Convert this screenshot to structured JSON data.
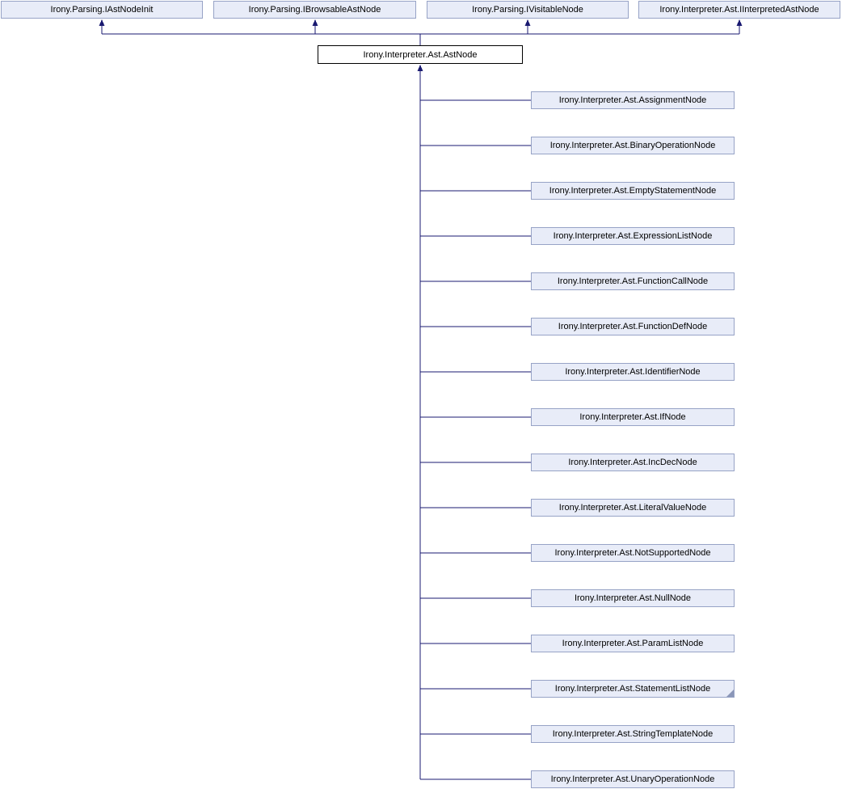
{
  "diagram": {
    "kind": "class-inheritance-graph",
    "colors": {
      "background": "#ffffff",
      "node_fill": "#e8ecf8",
      "node_border": "#97a3c6",
      "main_node_fill": "#ffffff",
      "main_node_border": "#000000",
      "edge": "#191970",
      "text": "#000000"
    },
    "interfaces": [
      {
        "label": "Irony.Parsing.IAstNodeInit"
      },
      {
        "label": "Irony.Parsing.IBrowsableAstNode"
      },
      {
        "label": "Irony.Parsing.IVisitableNode"
      },
      {
        "label": "Irony.Interpreter.Ast.IInterpretedAstNode"
      }
    ],
    "main_node": {
      "label": "Irony.Interpreter.Ast.AstNode"
    },
    "derived": [
      {
        "label": "Irony.Interpreter.Ast.AssignmentNode",
        "has_more_marker": false
      },
      {
        "label": "Irony.Interpreter.Ast.BinaryOperationNode",
        "has_more_marker": false
      },
      {
        "label": "Irony.Interpreter.Ast.EmptyStatementNode",
        "has_more_marker": false
      },
      {
        "label": "Irony.Interpreter.Ast.ExpressionListNode",
        "has_more_marker": false
      },
      {
        "label": "Irony.Interpreter.Ast.FunctionCallNode",
        "has_more_marker": false
      },
      {
        "label": "Irony.Interpreter.Ast.FunctionDefNode",
        "has_more_marker": false
      },
      {
        "label": "Irony.Interpreter.Ast.IdentifierNode",
        "has_more_marker": false
      },
      {
        "label": "Irony.Interpreter.Ast.IfNode",
        "has_more_marker": false
      },
      {
        "label": "Irony.Interpreter.Ast.IncDecNode",
        "has_more_marker": false
      },
      {
        "label": "Irony.Interpreter.Ast.LiteralValueNode",
        "has_more_marker": false
      },
      {
        "label": "Irony.Interpreter.Ast.NotSupportedNode",
        "has_more_marker": false
      },
      {
        "label": "Irony.Interpreter.Ast.NullNode",
        "has_more_marker": false
      },
      {
        "label": "Irony.Interpreter.Ast.ParamListNode",
        "has_more_marker": false
      },
      {
        "label": "Irony.Interpreter.Ast.StatementListNode",
        "has_more_marker": true
      },
      {
        "label": "Irony.Interpreter.Ast.StringTemplateNode",
        "has_more_marker": false
      },
      {
        "label": "Irony.Interpreter.Ast.UnaryOperationNode",
        "has_more_marker": false
      }
    ]
  }
}
